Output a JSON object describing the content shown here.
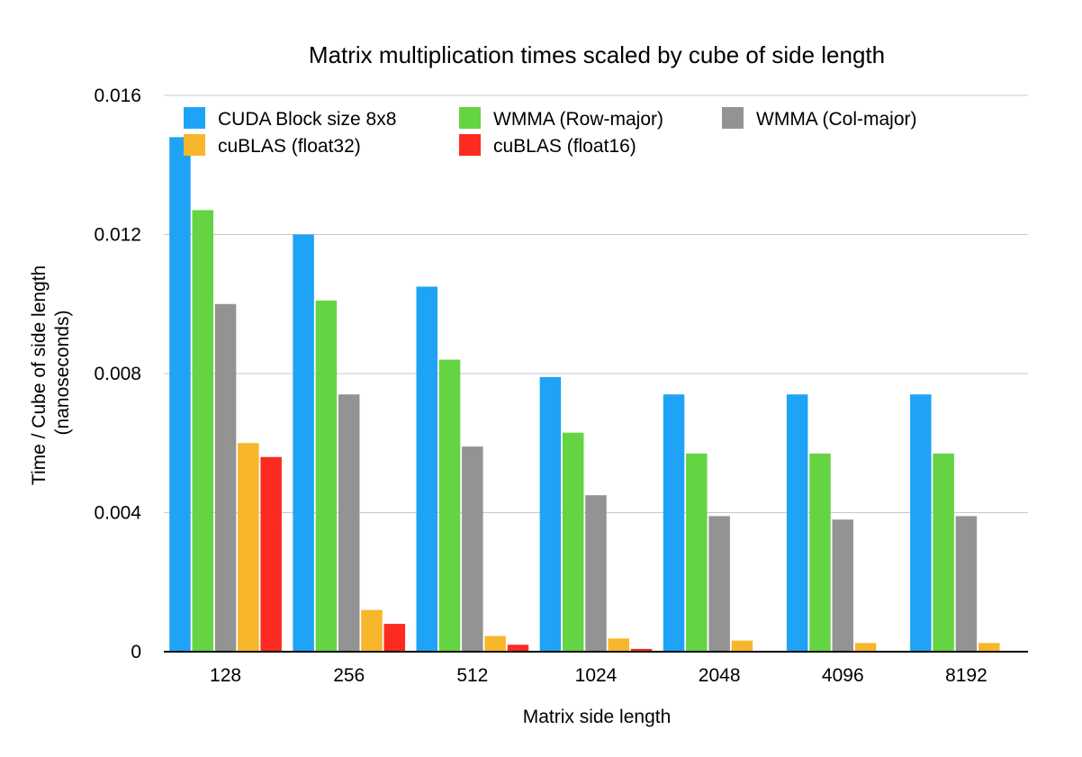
{
  "chart_data": {
    "type": "bar",
    "title": "Matrix multiplication times scaled by cube of side length",
    "xlabel": "Matrix side length",
    "ylabel": [
      "Time / Cube of side length",
      "(nanoseconds)"
    ],
    "ylim": [
      0,
      0.016
    ],
    "yticks": [
      {
        "value": 0,
        "label": "0"
      },
      {
        "value": 0.004,
        "label": "0.004"
      },
      {
        "value": 0.008,
        "label": "0.008"
      },
      {
        "value": 0.012,
        "label": "0.012"
      },
      {
        "value": 0.016,
        "label": "0.016"
      }
    ],
    "grid": true,
    "legend_position": "top",
    "categories": [
      "128",
      "256",
      "512",
      "1024",
      "2048",
      "4096",
      "8192"
    ],
    "series": [
      {
        "name": "CUDA Block size 8x8",
        "color": "#1fa3f7",
        "values": [
          0.0148,
          0.012,
          0.0105,
          0.0079,
          0.0074,
          0.0074,
          0.0074
        ]
      },
      {
        "name": "WMMA (Row-major)",
        "color": "#64d442",
        "values": [
          0.0127,
          0.0101,
          0.0084,
          0.0063,
          0.0057,
          0.0057,
          0.0057
        ]
      },
      {
        "name": "WMMA (Col-major)",
        "color": "#939393",
        "values": [
          0.01,
          0.0074,
          0.0059,
          0.0045,
          0.0039,
          0.0038,
          0.0039
        ]
      },
      {
        "name": "cuBLAS (float32)",
        "color": "#f7b62c",
        "values": [
          0.006,
          0.0012,
          0.00045,
          0.00038,
          0.00032,
          0.00025,
          0.00025
        ]
      },
      {
        "name": "cuBLAS (float16)",
        "color": "#fb2b22",
        "values": [
          0.0056,
          0.0008,
          0.0002,
          8e-05,
          0,
          0,
          0
        ]
      }
    ]
  }
}
